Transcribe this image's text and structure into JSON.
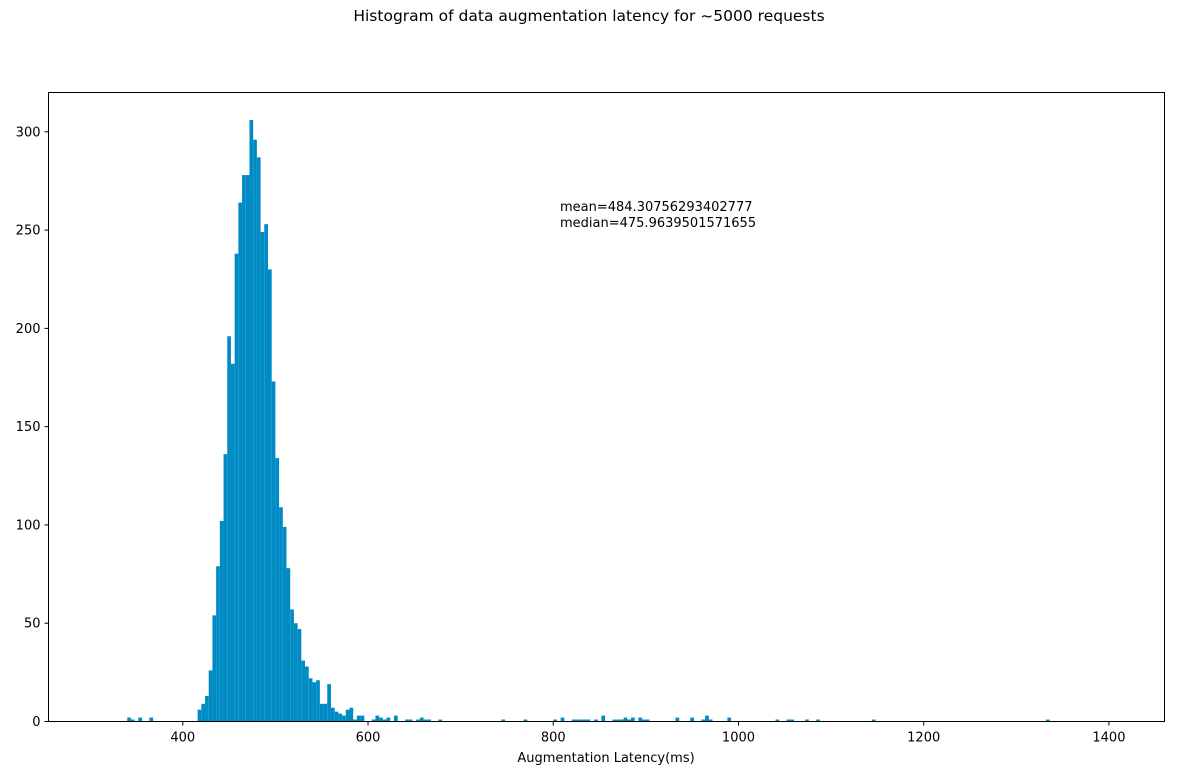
{
  "chart_data": {
    "type": "bar",
    "title": "Histogram of data augmentation latency for ~5000 requests",
    "xlabel": "Augmentation Latency(ms)",
    "ylabel": "",
    "xlim": [
      255,
      1460
    ],
    "ylim": [
      0,
      320
    ],
    "xticks": [
      400,
      600,
      800,
      1000,
      1200,
      1400
    ],
    "yticks": [
      0,
      50,
      100,
      150,
      200,
      250,
      300
    ],
    "bar_color": "#008bc4",
    "grid": false,
    "legend": "none",
    "annotations": [
      "mean=484.30756293402777",
      "median=475.9639501571655"
    ],
    "bin_width": 4,
    "bins": [
      {
        "x": 340,
        "y": 2
      },
      {
        "x": 344,
        "y": 1
      },
      {
        "x": 352,
        "y": 2
      },
      {
        "x": 364,
        "y": 2
      },
      {
        "x": 416,
        "y": 6
      },
      {
        "x": 420,
        "y": 9
      },
      {
        "x": 424,
        "y": 13
      },
      {
        "x": 428,
        "y": 26
      },
      {
        "x": 432,
        "y": 54
      },
      {
        "x": 436,
        "y": 79
      },
      {
        "x": 440,
        "y": 102
      },
      {
        "x": 444,
        "y": 136
      },
      {
        "x": 448,
        "y": 196
      },
      {
        "x": 452,
        "y": 182
      },
      {
        "x": 456,
        "y": 238
      },
      {
        "x": 460,
        "y": 264
      },
      {
        "x": 464,
        "y": 278
      },
      {
        "x": 468,
        "y": 278
      },
      {
        "x": 472,
        "y": 306
      },
      {
        "x": 476,
        "y": 296
      },
      {
        "x": 480,
        "y": 287
      },
      {
        "x": 484,
        "y": 249
      },
      {
        "x": 488,
        "y": 253
      },
      {
        "x": 492,
        "y": 230
      },
      {
        "x": 496,
        "y": 173
      },
      {
        "x": 500,
        "y": 134
      },
      {
        "x": 504,
        "y": 109
      },
      {
        "x": 508,
        "y": 99
      },
      {
        "x": 512,
        "y": 78
      },
      {
        "x": 516,
        "y": 57
      },
      {
        "x": 520,
        "y": 50
      },
      {
        "x": 524,
        "y": 47
      },
      {
        "x": 528,
        "y": 31
      },
      {
        "x": 532,
        "y": 28
      },
      {
        "x": 536,
        "y": 22
      },
      {
        "x": 540,
        "y": 20
      },
      {
        "x": 544,
        "y": 21
      },
      {
        "x": 548,
        "y": 9
      },
      {
        "x": 552,
        "y": 9
      },
      {
        "x": 556,
        "y": 19
      },
      {
        "x": 560,
        "y": 7
      },
      {
        "x": 564,
        "y": 5
      },
      {
        "x": 568,
        "y": 4
      },
      {
        "x": 572,
        "y": 3
      },
      {
        "x": 576,
        "y": 6
      },
      {
        "x": 580,
        "y": 7
      },
      {
        "x": 584,
        "y": 1
      },
      {
        "x": 588,
        "y": 3
      },
      {
        "x": 592,
        "y": 3
      },
      {
        "x": 604,
        "y": 1
      },
      {
        "x": 608,
        "y": 3
      },
      {
        "x": 612,
        "y": 2
      },
      {
        "x": 616,
        "y": 1
      },
      {
        "x": 620,
        "y": 2
      },
      {
        "x": 628,
        "y": 3
      },
      {
        "x": 640,
        "y": 1
      },
      {
        "x": 644,
        "y": 1
      },
      {
        "x": 652,
        "y": 1
      },
      {
        "x": 656,
        "y": 2
      },
      {
        "x": 660,
        "y": 1
      },
      {
        "x": 664,
        "y": 1
      },
      {
        "x": 676,
        "y": 1
      },
      {
        "x": 744,
        "y": 1
      },
      {
        "x": 768,
        "y": 1
      },
      {
        "x": 800,
        "y": 1
      },
      {
        "x": 808,
        "y": 2
      },
      {
        "x": 820,
        "y": 1
      },
      {
        "x": 824,
        "y": 1
      },
      {
        "x": 828,
        "y": 1
      },
      {
        "x": 832,
        "y": 1
      },
      {
        "x": 836,
        "y": 1
      },
      {
        "x": 844,
        "y": 1
      },
      {
        "x": 852,
        "y": 3
      },
      {
        "x": 864,
        "y": 1
      },
      {
        "x": 868,
        "y": 1
      },
      {
        "x": 872,
        "y": 1
      },
      {
        "x": 876,
        "y": 2
      },
      {
        "x": 880,
        "y": 1
      },
      {
        "x": 884,
        "y": 2
      },
      {
        "x": 892,
        "y": 2
      },
      {
        "x": 896,
        "y": 1
      },
      {
        "x": 900,
        "y": 1
      },
      {
        "x": 932,
        "y": 2
      },
      {
        "x": 948,
        "y": 2
      },
      {
        "x": 960,
        "y": 1
      },
      {
        "x": 964,
        "y": 3
      },
      {
        "x": 968,
        "y": 1
      },
      {
        "x": 988,
        "y": 2
      },
      {
        "x": 1040,
        "y": 1
      },
      {
        "x": 1052,
        "y": 1
      },
      {
        "x": 1056,
        "y": 1
      },
      {
        "x": 1072,
        "y": 1
      },
      {
        "x": 1084,
        "y": 1
      },
      {
        "x": 1144,
        "y": 1
      },
      {
        "x": 1332,
        "y": 1
      }
    ]
  }
}
